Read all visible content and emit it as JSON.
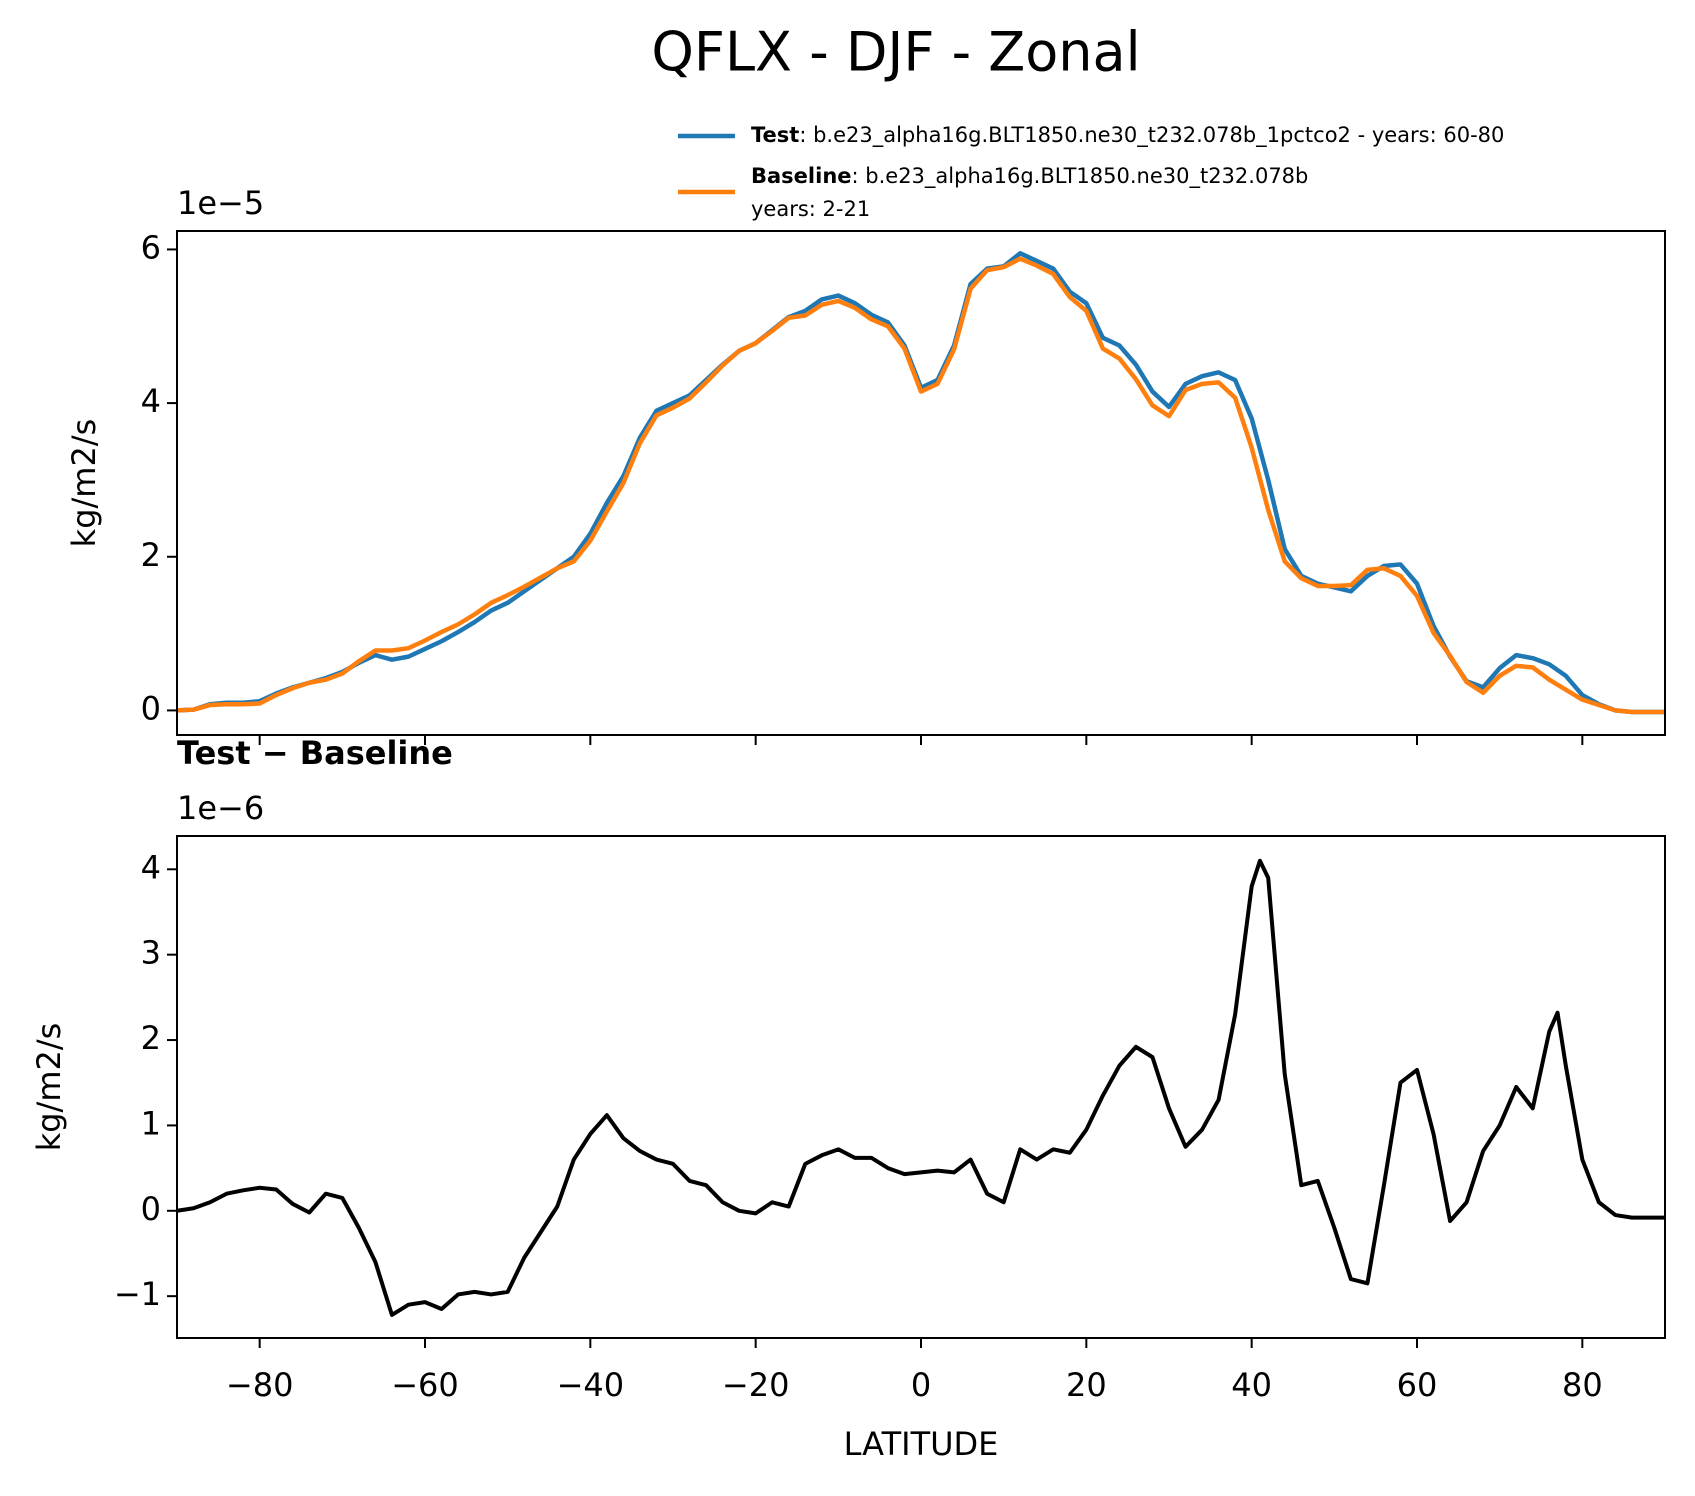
{
  "title": "QFLX - DJF - Zonal",
  "chart_data": [
    {
      "type": "line",
      "offset_text": "1e−5",
      "ylabel": "kg/m2/s",
      "x": [
        -90,
        -88,
        -86,
        -84,
        -82,
        -80,
        -78,
        -76,
        -74,
        -72,
        -70,
        -68,
        -66,
        -64,
        -62,
        -60,
        -58,
        -56,
        -54,
        -52,
        -50,
        -48,
        -46,
        -44,
        -42,
        -40,
        -38,
        -36,
        -34,
        -32,
        -30,
        -28,
        -26,
        -24,
        -22,
        -20,
        -18,
        -16,
        -14,
        -12,
        -10,
        -8,
        -6,
        -4,
        -2,
        0,
        2,
        4,
        6,
        8,
        10,
        12,
        14,
        16,
        18,
        20,
        22,
        24,
        26,
        28,
        30,
        32,
        34,
        36,
        38,
        40,
        42,
        44,
        46,
        48,
        50,
        52,
        54,
        56,
        58,
        60,
        62,
        64,
        66,
        68,
        70,
        72,
        74,
        76,
        78,
        80,
        82,
        84,
        86,
        88,
        90
      ],
      "series": [
        {
          "name": "Test",
          "label": ": b.e23_alpha16g.BLT1850.ne30_t232.078b_1pctco2 - years: 60-80",
          "color": "#1f77b4",
          "values": [
            0,
            0.01,
            0.08,
            0.1,
            0.1,
            0.12,
            0.22,
            0.3,
            0.36,
            0.42,
            0.5,
            0.62,
            0.72,
            0.66,
            0.7,
            0.8,
            0.9,
            1.02,
            1.15,
            1.3,
            1.4,
            1.55,
            1.7,
            1.85,
            2.0,
            2.3,
            2.7,
            3.05,
            3.55,
            3.9,
            4.0,
            4.1,
            4.3,
            4.5,
            4.68,
            4.78,
            4.95,
            5.12,
            5.2,
            5.35,
            5.4,
            5.3,
            5.15,
            5.05,
            4.75,
            4.2,
            4.3,
            4.75,
            5.55,
            5.75,
            5.78,
            5.95,
            5.85,
            5.75,
            5.45,
            5.3,
            4.85,
            4.75,
            4.5,
            4.15,
            3.95,
            4.25,
            4.35,
            4.4,
            4.3,
            3.8,
            3.0,
            2.1,
            1.75,
            1.65,
            1.6,
            1.55,
            1.75,
            1.88,
            1.9,
            1.65,
            1.1,
            0.7,
            0.38,
            0.3,
            0.55,
            0.72,
            0.68,
            0.6,
            0.45,
            0.2,
            0.08,
            0,
            -0.02,
            -0.02,
            -0.02
          ]
        },
        {
          "name": "Baseline",
          "label": [
            ": b.e23_alpha16g.BLT1850.ne30_t232.078b",
            "years: 2-21"
          ],
          "color": "#ff7f0e",
          "values": [
            0,
            0.01,
            0.07,
            0.08,
            0.08,
            0.09,
            0.2,
            0.29,
            0.36,
            0.4,
            0.48,
            0.64,
            0.78,
            0.78,
            0.81,
            0.91,
            1.02,
            1.12,
            1.25,
            1.4,
            1.5,
            1.61,
            1.73,
            1.85,
            1.94,
            2.21,
            2.59,
            2.96,
            3.48,
            3.84,
            3.94,
            4.06,
            4.27,
            4.49,
            4.68,
            4.78,
            4.94,
            5.11,
            5.14,
            5.28,
            5.33,
            5.24,
            5.09,
            5.0,
            4.71,
            4.15,
            4.25,
            4.7,
            5.49,
            5.73,
            5.77,
            5.88,
            5.79,
            5.68,
            5.38,
            5.2,
            4.71,
            4.58,
            4.31,
            3.97,
            3.83,
            4.17,
            4.25,
            4.27,
            4.07,
            3.42,
            2.61,
            1.94,
            1.72,
            1.62,
            1.62,
            1.63,
            1.83,
            1.85,
            1.75,
            1.49,
            1.01,
            0.71,
            0.37,
            0.23,
            0.45,
            0.58,
            0.56,
            0.4,
            0.27,
            0.14,
            0.07,
            0,
            -0.02,
            -0.02,
            -0.02
          ]
        }
      ],
      "xlim": [
        -90,
        90
      ],
      "xticks": [
        -80,
        -60,
        -40,
        -20,
        0,
        20,
        40,
        60,
        80
      ],
      "ylim": [
        -0.32,
        6.24
      ],
      "yticks": [
        0,
        2,
        4,
        6
      ]
    },
    {
      "type": "line",
      "title": "Test − Baseline",
      "offset_text": "1e−6",
      "ylabel": "kg/m2/s",
      "xlabel": "LATITUDE",
      "x": [
        -90,
        -88,
        -86,
        -84,
        -82,
        -80,
        -78,
        -76,
        -74,
        -72,
        -70,
        -68,
        -66,
        -64,
        -62,
        -60,
        -58,
        -56,
        -54,
        -52,
        -50,
        -48,
        -46,
        -44,
        -42,
        -40,
        -38,
        -36,
        -34,
        -32,
        -30,
        -28,
        -26,
        -24,
        -22,
        -20,
        -18,
        -16,
        -14,
        -12,
        -10,
        -8,
        -6,
        -4,
        -2,
        0,
        2,
        4,
        6,
        8,
        10,
        12,
        14,
        16,
        18,
        20,
        22,
        24,
        26,
        28,
        30,
        32,
        34,
        36,
        38,
        40,
        41,
        42,
        44,
        46,
        48,
        50,
        52,
        54,
        56,
        58,
        60,
        62,
        64,
        66,
        68,
        70,
        72,
        74,
        76,
        77,
        78,
        80,
        82,
        84,
        86,
        88,
        90
      ],
      "color": "#000000",
      "values": [
        0,
        0.03,
        0.1,
        0.2,
        0.24,
        0.27,
        0.25,
        0.08,
        -0.02,
        0.2,
        0.15,
        -0.2,
        -0.6,
        -1.22,
        -1.1,
        -1.07,
        -1.15,
        -0.98,
        -0.95,
        -0.98,
        -0.95,
        -0.55,
        -0.25,
        0.05,
        0.6,
        0.9,
        1.12,
        0.85,
        0.7,
        0.6,
        0.55,
        0.35,
        0.3,
        0.1,
        0.0,
        -0.03,
        0.1,
        0.05,
        0.55,
        0.65,
        0.72,
        0.62,
        0.62,
        0.5,
        0.43,
        0.45,
        0.47,
        0.45,
        0.6,
        0.2,
        0.1,
        0.72,
        0.6,
        0.72,
        0.68,
        0.95,
        1.35,
        1.7,
        1.92,
        1.8,
        1.2,
        0.75,
        0.95,
        1.3,
        2.3,
        3.8,
        4.1,
        3.9,
        1.6,
        0.3,
        0.35,
        -0.2,
        -0.8,
        -0.85,
        0.3,
        1.5,
        1.65,
        0.9,
        -0.12,
        0.1,
        0.7,
        1.0,
        1.45,
        1.2,
        2.1,
        2.32,
        1.7,
        0.6,
        0.1,
        -0.05,
        -0.08,
        -0.08,
        -0.08
      ],
      "xlim": [
        -90,
        90
      ],
      "xticks": [
        {
          "value": -80,
          "label": "−80"
        },
        {
          "value": -60,
          "label": "−60"
        },
        {
          "value": -40,
          "label": "−40"
        },
        {
          "value": -20,
          "label": "−20"
        },
        0,
        20,
        40,
        60,
        80
      ],
      "ylim": [
        -1.49,
        4.39
      ],
      "yticks": [
        {
          "value": -1,
          "label": "−1"
        },
        0,
        1,
        2,
        3,
        4
      ]
    }
  ]
}
